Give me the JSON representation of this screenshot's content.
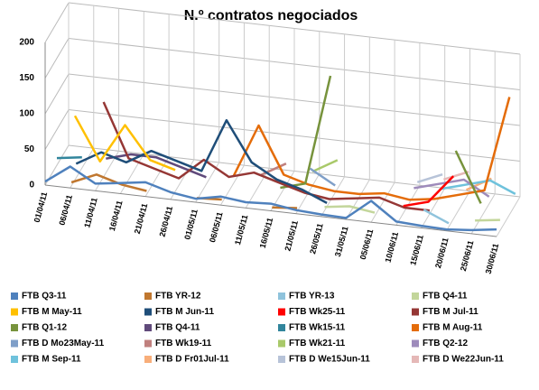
{
  "chart_data": {
    "type": "line3d",
    "title": "N.º contratos negociados",
    "categories": [
      "01/04/11",
      "06/04/11",
      "11/04/11",
      "16/04/11",
      "21/04/11",
      "26/04/11",
      "01/05/11",
      "06/05/11",
      "11/05/11",
      "16/05/11",
      "21/05/11",
      "26/05/11",
      "31/05/11",
      "05/06/11",
      "10/06/11",
      "15/06/11",
      "20/06/11",
      "25/06/11",
      "30/06/11"
    ],
    "ylim": [
      0,
      200
    ],
    "yticks": [
      0,
      50,
      100,
      150,
      200
    ],
    "grid": true,
    "series": [
      {
        "name": "FTB Q3-11",
        "color": "#4F81BD",
        "values": [
          5,
          30,
          10,
          15,
          20,
          10,
          5,
          12,
          8,
          10,
          5,
          3,
          2,
          30,
          5,
          3,
          2,
          5,
          10
        ]
      },
      {
        "name": "FTB YR-12",
        "color": "#C0772F",
        "values": [
          null,
          5,
          20,
          10,
          5,
          null,
          3,
          5,
          null,
          2,
          5,
          null,
          null,
          3,
          null,
          2,
          null,
          3,
          null
        ]
      },
      {
        "name": "FTB YR-13",
        "color": "#8FC3DC",
        "values": [
          null,
          null,
          null,
          null,
          null,
          null,
          null,
          null,
          null,
          null,
          null,
          null,
          null,
          null,
          null,
          20,
          5,
          null,
          null
        ]
      },
      {
        "name": "FTB Q4-11",
        "color": "#C3D69B",
        "values": [
          null,
          null,
          null,
          null,
          null,
          null,
          null,
          null,
          null,
          null,
          null,
          5,
          10,
          5,
          null,
          null,
          null,
          10,
          15
        ]
      },
      {
        "name": "FTB M May-11",
        "color": "#FFC000",
        "values": [
          null,
          90,
          30,
          85,
          40,
          30,
          null,
          null,
          null,
          null,
          null,
          null,
          null,
          null,
          null,
          null,
          null,
          null,
          null
        ]
      },
      {
        "name": "FTB M Jun-11",
        "color": "#1F4E79",
        "values": [
          null,
          20,
          40,
          30,
          50,
          40,
          30,
          105,
          50,
          30,
          20,
          5,
          null,
          null,
          null,
          null,
          null,
          null,
          null
        ]
      },
      {
        "name": "FTB Wk25-11",
        "color": "#FF0000",
        "values": [
          null,
          null,
          null,
          null,
          null,
          null,
          null,
          null,
          null,
          null,
          null,
          null,
          null,
          null,
          10,
          20,
          60,
          null,
          null
        ]
      },
      {
        "name": "FTB M Jul-11",
        "color": "#953735",
        "values": [
          null,
          null,
          105,
          30,
          20,
          10,
          40,
          20,
          30,
          20,
          10,
          5,
          10,
          15,
          5,
          5,
          null,
          null,
          null
        ]
      },
      {
        "name": "FTB Q1-12",
        "color": "#77933C",
        "values": [
          null,
          null,
          null,
          null,
          null,
          null,
          null,
          null,
          null,
          10,
          20,
          175,
          null,
          null,
          null,
          null,
          90,
          20,
          null
        ]
      },
      {
        "name": "FTB Q4-11",
        "color": "#604A7B",
        "values": [
          null,
          null,
          20,
          30,
          30,
          20,
          10,
          null,
          null,
          null,
          null,
          null,
          null,
          null,
          null,
          null,
          null,
          null,
          null
        ]
      },
      {
        "name": "FTB Wk15-11",
        "color": "#31859C",
        "values": [
          10,
          15,
          null,
          null,
          null,
          null,
          null,
          null,
          null,
          null,
          null,
          null,
          null,
          null,
          null,
          null,
          null,
          null,
          null
        ]
      },
      {
        "name": "FTB M Aug-11",
        "color": "#E46C0A",
        "values": [
          null,
          null,
          null,
          null,
          null,
          null,
          null,
          10,
          85,
          20,
          10,
          5,
          5,
          10,
          5,
          10,
          20,
          30,
          165
        ]
      },
      {
        "name": "FTB D Mo23May-11",
        "color": "#7F9FC8",
        "values": [
          null,
          null,
          null,
          null,
          null,
          null,
          null,
          null,
          null,
          null,
          30,
          10,
          null,
          null,
          null,
          null,
          null,
          null,
          null
        ]
      },
      {
        "name": "FTB Wk19-11",
        "color": "#C0807E",
        "values": [
          null,
          null,
          null,
          null,
          null,
          null,
          null,
          null,
          10,
          30,
          null,
          null,
          null,
          null,
          null,
          null,
          null,
          null,
          null
        ]
      },
      {
        "name": "FTB Wk21-11",
        "color": "#A9C96A",
        "values": [
          null,
          null,
          null,
          null,
          null,
          null,
          null,
          null,
          null,
          null,
          20,
          40,
          null,
          null,
          null,
          null,
          null,
          null,
          null
        ]
      },
      {
        "name": "FTB Q2-12",
        "color": "#9E8BBB",
        "values": [
          null,
          null,
          null,
          null,
          null,
          null,
          null,
          null,
          null,
          null,
          null,
          null,
          null,
          null,
          10,
          20,
          30,
          10,
          null
        ]
      },
      {
        "name": "FTB M Sep-11",
        "color": "#6FC2DC",
        "values": [
          null,
          null,
          null,
          null,
          null,
          null,
          null,
          null,
          null,
          null,
          null,
          null,
          null,
          null,
          null,
          10,
          20,
          30,
          15
        ]
      },
      {
        "name": "FTB D Fr01Jul-11",
        "color": "#F8AE7A",
        "values": [
          null,
          null,
          null,
          null,
          null,
          null,
          null,
          null,
          null,
          null,
          null,
          null,
          null,
          null,
          null,
          null,
          10,
          30,
          null
        ]
      },
      {
        "name": "FTB D We15Jun-11",
        "color": "#B7C3D8",
        "values": [
          null,
          null,
          null,
          null,
          null,
          null,
          null,
          null,
          null,
          null,
          null,
          null,
          null,
          null,
          10,
          25,
          null,
          null,
          null
        ]
      },
      {
        "name": "FTB D We22Jun-11",
        "color": "#E5B8B7",
        "values": [
          null,
          null,
          null,
          null,
          null,
          null,
          null,
          null,
          null,
          null,
          null,
          null,
          null,
          null,
          null,
          15,
          30,
          null,
          null
        ]
      }
    ]
  }
}
